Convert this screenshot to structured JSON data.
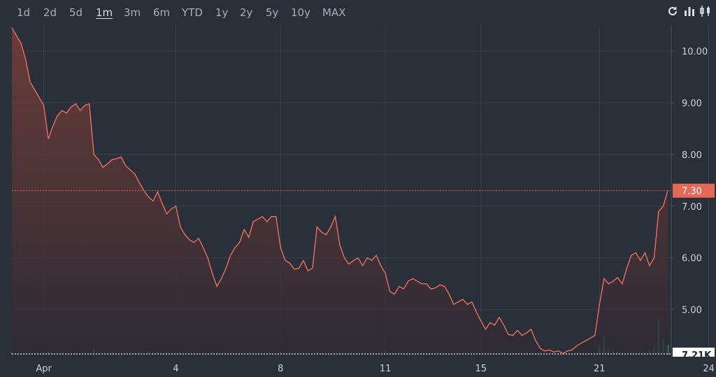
{
  "toolbar": {
    "ranges": [
      "1d",
      "2d",
      "5d",
      "1m",
      "3m",
      "6m",
      "YTD",
      "1y",
      "2y",
      "5y",
      "10y",
      "MAX"
    ],
    "active_range": "1m",
    "icons": [
      "refresh-icon",
      "bar-chart-icon",
      "candlestick-icon"
    ]
  },
  "chart_data": {
    "type": "area",
    "xlabel": "",
    "ylabel": "",
    "x_tick_labels": [
      "Apr",
      "4",
      "8",
      "11",
      "15",
      "21",
      "24"
    ],
    "y_ticks": [
      10.0,
      9.0,
      8.0,
      7.0,
      6.0,
      5.0
    ],
    "y_tick_labels": [
      "10.00",
      "9.00",
      "8.00",
      "7.00",
      "6.00",
      "5.00"
    ],
    "ylim": [
      4.13,
      10.5
    ],
    "current_price": 7.3,
    "current_price_label": "7.30",
    "volume_label": "7.21K",
    "grid": true,
    "colors": {
      "line": "#e8705f",
      "fill_top": "#7a3f3a",
      "fill_bottom": "#2e2a33",
      "volume": "#2e7a6e",
      "price_badge": "#e46a57",
      "grid": "#3a404b",
      "background": "#2a2f39"
    },
    "price_series": [
      10.45,
      10.3,
      10.15,
      9.85,
      9.4,
      9.25,
      9.1,
      8.95,
      8.3,
      8.55,
      8.75,
      8.85,
      8.8,
      8.92,
      8.98,
      8.85,
      8.95,
      8.98,
      8.0,
      7.9,
      7.75,
      7.82,
      7.9,
      7.92,
      7.95,
      7.78,
      7.7,
      7.62,
      7.45,
      7.3,
      7.18,
      7.1,
      7.28,
      7.05,
      6.85,
      6.95,
      7.0,
      6.6,
      6.45,
      6.35,
      6.3,
      6.38,
      6.2,
      6.0,
      5.7,
      5.45,
      5.6,
      5.8,
      6.05,
      6.2,
      6.3,
      6.55,
      6.4,
      6.7,
      6.75,
      6.8,
      6.7,
      6.8,
      6.8,
      6.2,
      5.95,
      5.9,
      5.78,
      5.8,
      5.95,
      5.75,
      5.8,
      6.6,
      6.5,
      6.45,
      6.6,
      6.8,
      6.25,
      6.0,
      5.88,
      5.95,
      6.0,
      5.85,
      6.0,
      5.95,
      6.05,
      5.85,
      5.7,
      5.35,
      5.3,
      5.45,
      5.4,
      5.55,
      5.6,
      5.55,
      5.5,
      5.5,
      5.4,
      5.42,
      5.48,
      5.45,
      5.3,
      5.1,
      5.15,
      5.2,
      5.1,
      5.15,
      4.95,
      4.78,
      4.62,
      4.75,
      4.7,
      4.85,
      4.7,
      4.52,
      4.5,
      4.6,
      4.5,
      4.55,
      4.62,
      4.4,
      4.25,
      4.2,
      4.22,
      4.18,
      4.2,
      4.15,
      4.2,
      4.22,
      4.3,
      4.35,
      4.4,
      4.45,
      4.5,
      5.1,
      5.6,
      5.5,
      5.55,
      5.62,
      5.5,
      5.8,
      6.05,
      6.1,
      5.95,
      6.1,
      5.85,
      6.0,
      6.9,
      7.0,
      7.3
    ],
    "volume_series": [
      0.4,
      0.3,
      0.2,
      0.5,
      0.3,
      0.25,
      0.3,
      0.4,
      0.6,
      0.3,
      0.2,
      0.35,
      0.3,
      0.25,
      0.7,
      0.3,
      0.4,
      0.2,
      1.0,
      0.4,
      0.3,
      0.35,
      0.5,
      0.3,
      0.25,
      0.4,
      0.3,
      0.5,
      0.4,
      0.3,
      0.6,
      0.35,
      0.8,
      0.3,
      0.4,
      0.3,
      0.25,
      0.5,
      0.35,
      0.3,
      0.2,
      0.4,
      0.3,
      0.25,
      0.6,
      0.45,
      0.3,
      0.25,
      0.3,
      0.2,
      0.4,
      0.3,
      0.5,
      0.35,
      0.25,
      0.3,
      0.4,
      0.3,
      0.2,
      0.7,
      0.3,
      0.25,
      0.3,
      0.4,
      0.3,
      0.2,
      0.25,
      0.45,
      0.3,
      0.2,
      0.3,
      0.25,
      0.35,
      0.3,
      0.2,
      0.3,
      0.25,
      0.4,
      0.3,
      0.2,
      0.3,
      0.25,
      0.9,
      0.4,
      0.3,
      0.35,
      0.25,
      0.3,
      0.2,
      0.4,
      0.3,
      0.25,
      0.3,
      0.2,
      0.35,
      0.3,
      0.25,
      0.3,
      0.4,
      0.3,
      0.2,
      0.3,
      0.25,
      0.35,
      0.3,
      0.2,
      0.3,
      0.25,
      0.4,
      0.3,
      0.2,
      0.3,
      0.25,
      0.3,
      0.2,
      0.3,
      0.25,
      0.2,
      0.3,
      0.25,
      0.2,
      0.3,
      0.25,
      0.2,
      0.3,
      0.25,
      0.2,
      0.3,
      0.25,
      2.0,
      3.8,
      1.4,
      1.0,
      0.6,
      0.5,
      0.4,
      0.5,
      0.3,
      0.4,
      0.6,
      1.0,
      1.6,
      7.5,
      3.2,
      2.0
    ],
    "x_tick_indices": [
      7,
      36,
      59,
      82,
      103,
      129,
      153
    ]
  }
}
